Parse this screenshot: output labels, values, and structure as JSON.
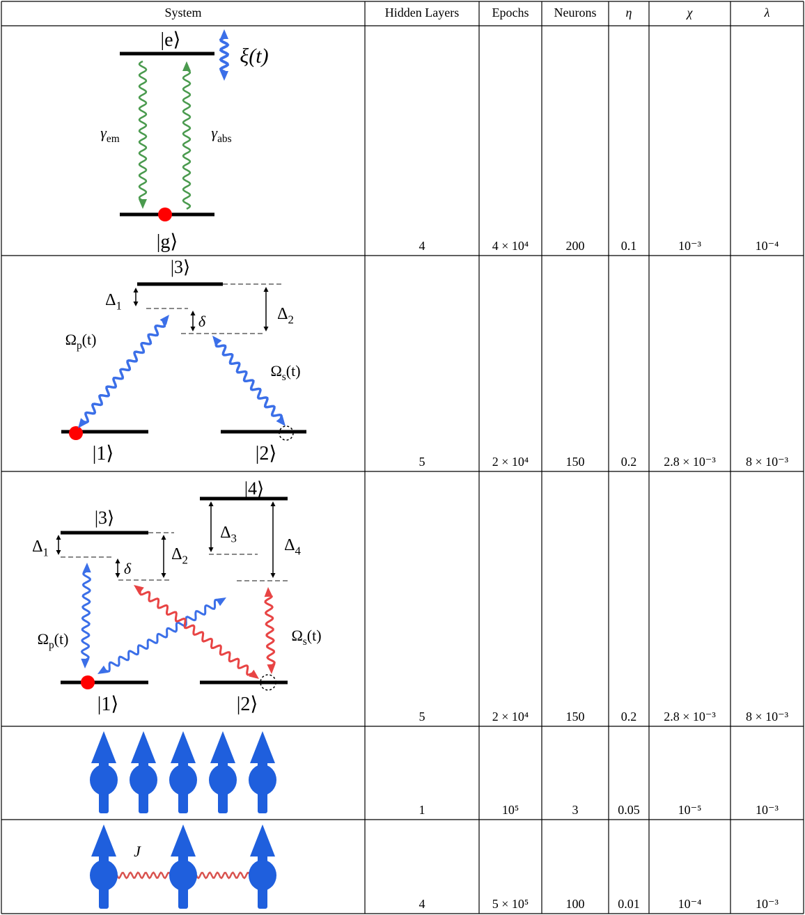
{
  "table": {
    "headers": [
      "System",
      "Hidden Layers",
      "Epochs",
      "Neurons",
      "η",
      "χ",
      "λ"
    ],
    "rows": [
      [
        "4",
        "4 × 10⁴",
        "200",
        "0.1",
        "10⁻³",
        "10⁻⁴"
      ],
      [
        "5",
        "2 × 10⁴",
        "150",
        "0.2",
        "2.8 × 10⁻³",
        "8 × 10⁻³"
      ],
      [
        "5",
        "2 × 10⁴",
        "150",
        "0.2",
        "2.8 × 10⁻³",
        "8 × 10⁻³"
      ],
      [
        "1",
        "10⁵",
        "3",
        "0.05",
        "10⁻⁵",
        "10⁻³"
      ],
      [
        "4",
        "5 × 10⁵",
        "100",
        "0.01",
        "10⁻⁴",
        "10⁻³"
      ]
    ]
  },
  "diagrams": {
    "row1": [
      {
        "text": "|e⟩"
      },
      {
        "text": "ξ(t)"
      },
      {
        "text": "γ",
        "sub": "em"
      },
      {
        "text": "γ",
        "sub": "abs"
      },
      {
        "text": "|g⟩"
      }
    ],
    "row2": [
      {
        "text": "|3⟩"
      },
      {
        "text": "Δ",
        "sub": "1"
      },
      {
        "text": "δ"
      },
      {
        "text": "Δ",
        "sub": "2"
      },
      {
        "text": "Ω",
        "sub": "p",
        "tail": "(t)"
      },
      {
        "text": "Ω",
        "sub": "s",
        "tail": "(t)"
      },
      {
        "text": "|1⟩"
      },
      {
        "text": "|2⟩"
      }
    ],
    "row3": [
      {
        "text": "|3⟩"
      },
      {
        "text": "|4⟩"
      },
      {
        "text": "Δ",
        "sub": "1"
      },
      {
        "text": "Δ",
        "sub": "2"
      },
      {
        "text": "Δ",
        "sub": "3"
      },
      {
        "text": "Δ",
        "sub": "4"
      },
      {
        "text": "δ"
      },
      {
        "text": "Ω",
        "sub": "p",
        "tail": "(t)"
      },
      {
        "text": "Ω",
        "sub": "s",
        "tail": "(t)"
      },
      {
        "text": "|1⟩"
      },
      {
        "text": "|2⟩"
      }
    ],
    "row5": [
      {
        "text": "J"
      }
    ]
  }
}
